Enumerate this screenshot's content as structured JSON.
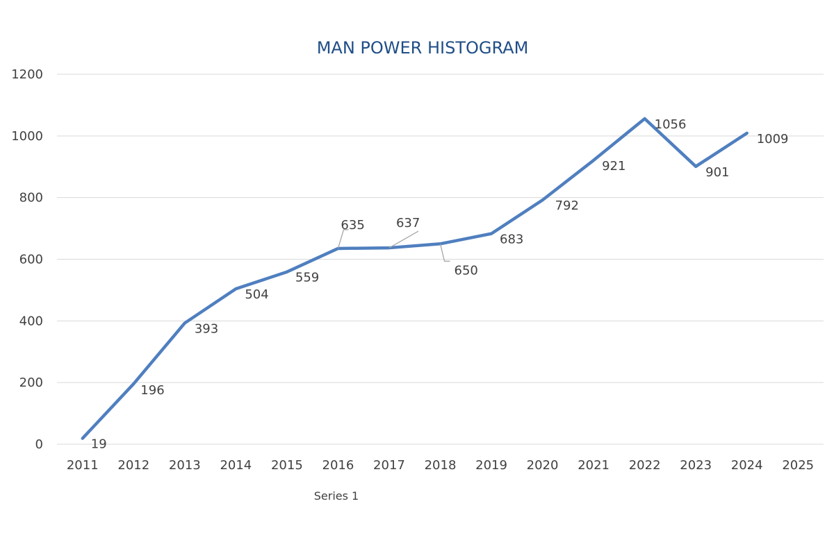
{
  "chart_data": {
    "type": "line",
    "title": "MAN POWER HISTOGRAM",
    "xlabel": "",
    "ylabel": "",
    "categories": [
      "2011",
      "2012",
      "2013",
      "2014",
      "2015",
      "2016",
      "2017",
      "2018",
      "2019",
      "2020",
      "2021",
      "2022",
      "2023",
      "2024",
      "2025"
    ],
    "series": [
      {
        "name": "Series 1",
        "values": [
          19,
          196,
          393,
          504,
          559,
          635,
          637,
          650,
          683,
          792,
          921,
          1056,
          901,
          1009,
          null
        ]
      }
    ],
    "y_ticks": [
      "0",
      "200",
      "400",
      "600",
      "800",
      "1000",
      "1200"
    ],
    "ylim": [
      0,
      1200
    ],
    "grid": true,
    "legend": "bottom-left",
    "colors": {
      "series": "#4f7fbf",
      "title": "#1f4e87"
    }
  }
}
